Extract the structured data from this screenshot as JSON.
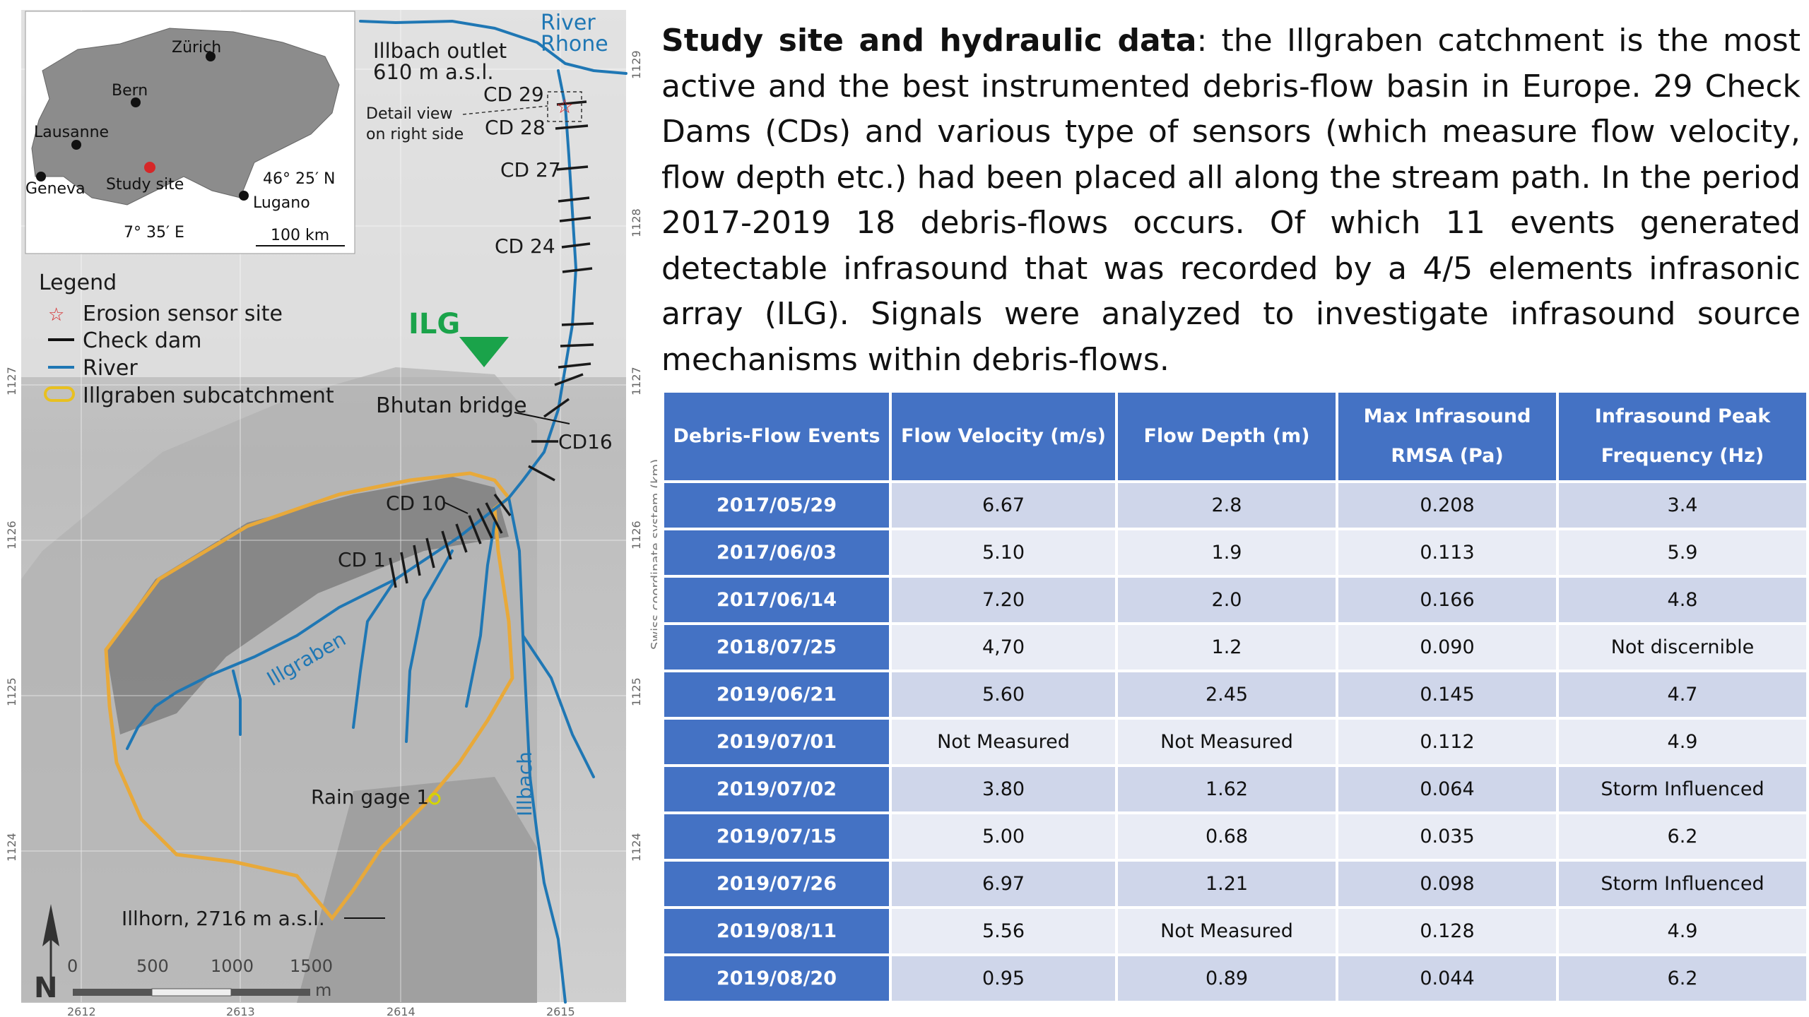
{
  "description": {
    "lead": "Study site and hydraulic data",
    "body": ": the Illgraben catchment is the most active and the best instrumented debris-flow basin in Europe. 29 Check Dams (CDs) and various type of sensors (which measure flow velocity, flow depth  etc.) had been placed all along the stream path. In the period 2017-2019 18 debris-flows occurs. Of which 11 events generated detectable infrasound that was recorded by a 4/5 elements infrasonic array (ILG). Signals were analyzed to investigate infrasound source mechanisms within debris-flows."
  },
  "table": {
    "headers": [
      "Debris-Flow Events",
      "Flow Velocity (m/s)",
      "Flow Depth (m)",
      "Max Infrasound RMSA (Pa)",
      "Infrasound Peak Frequency (Hz)"
    ],
    "rows": [
      [
        "2017/05/29",
        "6.67",
        "2.8",
        "0.208",
        "3.4"
      ],
      [
        "2017/06/03",
        "5.10",
        "1.9",
        "0.113",
        "5.9"
      ],
      [
        "2017/06/14",
        "7.20",
        "2.0",
        "0.166",
        "4.8"
      ],
      [
        "2018/07/25",
        "4,70",
        "1.2",
        "0.090",
        "Not discernible"
      ],
      [
        "2019/06/21",
        "5.60",
        "2.45",
        "0.145",
        "4.7"
      ],
      [
        "2019/07/01",
        "Not Measured",
        "Not Measured",
        "0.112",
        "4.9"
      ],
      [
        "2019/07/02",
        "3.80",
        "1.62",
        "0.064",
        "Storm Influenced"
      ],
      [
        "2019/07/15",
        "5.00",
        "0.68",
        "0.035",
        "6.2"
      ],
      [
        "2019/07/26",
        "6.97",
        "1.21",
        "0.098",
        "Storm Influenced"
      ],
      [
        "2019/08/11",
        "5.56",
        "Not Measured",
        "0.128",
        "4.9"
      ],
      [
        "2019/08/20",
        "0.95",
        "0.89",
        "0.044",
        "6.2"
      ]
    ]
  },
  "map": {
    "inset": {
      "cities": [
        "Zürich",
        "Bern",
        "Lausanne",
        "Geneva",
        "Lugano"
      ],
      "study_site": "Study site",
      "lat": "46° 25′ N",
      "lon": "7° 35′ E",
      "scale": "100 km"
    },
    "legend": {
      "title": "Legend",
      "items": [
        "Erosion sensor site",
        "Check dam",
        "River",
        "Illgraben subcatchment"
      ]
    },
    "labels": {
      "river_rhone_1": "River",
      "river_rhone_2": "Rhone",
      "outlet_1": "Illbach outlet",
      "outlet_2": "610 m a.s.l.",
      "detail_1": "Detail view",
      "detail_2": "on right side",
      "cd29": "CD 29",
      "cd28": "CD 28",
      "cd27": "CD 27",
      "cd24": "CD 24",
      "ilg": "ILG",
      "bhutan": "Bhutan bridge",
      "cd16": "CD16",
      "cd10": "CD 10",
      "cd1": "CD 1",
      "illgraben": "Illgraben",
      "illbach": "Illbach",
      "rain_gage": "Rain gage 1",
      "illhorn": "Illhorn, 2716 m a.s.l.",
      "north": "N",
      "coord_axis": "Swiss coordinate system (km)"
    },
    "scale_ticks": [
      "0",
      "500",
      "1000",
      "1500"
    ],
    "scale_unit": "m",
    "x_ticks": [
      "2612",
      "2613",
      "2614",
      "2615"
    ],
    "y_ticks_left": [
      "1127",
      "1126",
      "1125",
      "1124"
    ],
    "y_ticks_right": [
      "1129",
      "1128",
      "1127",
      "1126",
      "1125",
      "1124"
    ],
    "colors": {
      "river": "#1f77b4",
      "catchment": "#e8a93a",
      "ilg": "#1aa34a",
      "erosion": "#d62728"
    }
  }
}
